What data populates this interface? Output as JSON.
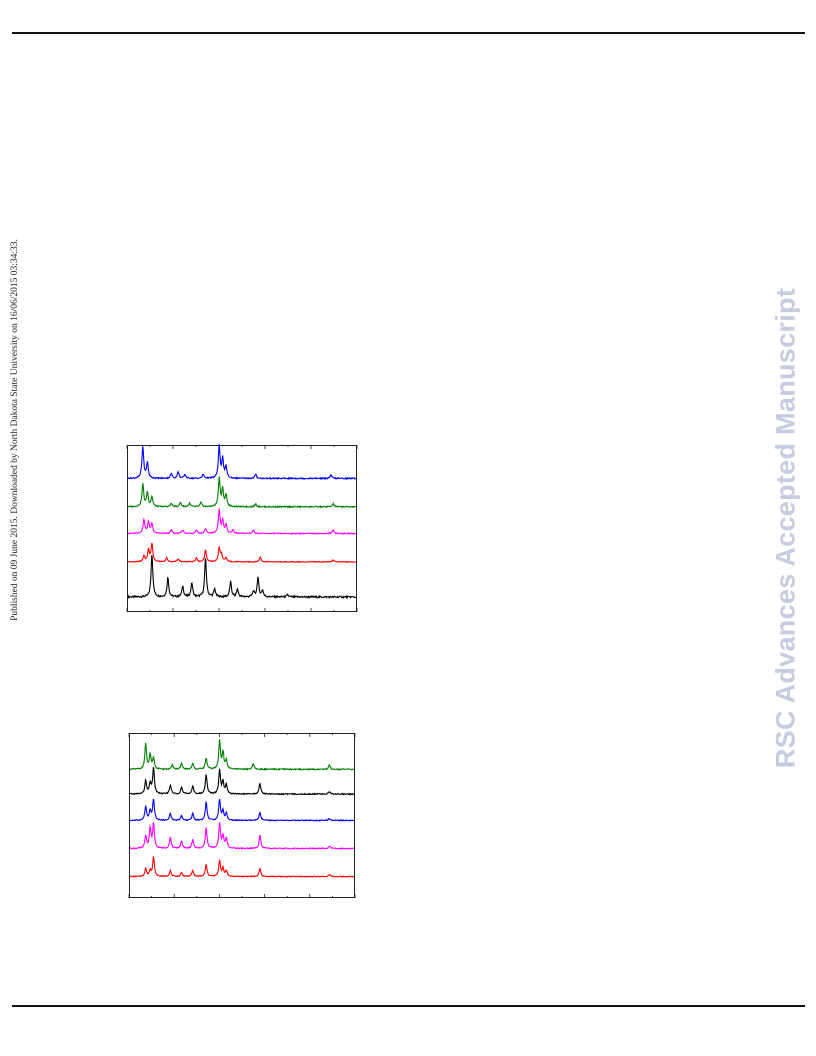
{
  "page": {
    "side_note": "Published on 09 June 2015. Downloaded by North Dakota State University on 16/06/2015 03:34:33.",
    "watermark": "RSC Advances Accepted Manuscript"
  },
  "colors": {
    "black": "#000000",
    "red": "#ff0000",
    "magenta": "#ff00ff",
    "green": "#008000",
    "blue": "#0000ff"
  },
  "chart_data": [
    {
      "type": "line",
      "title": "",
      "xlabel": "",
      "ylabel": "",
      "xlim": [
        0,
        100
      ],
      "grid": false,
      "series": [
        {
          "color": "#000000",
          "baseline": 0.91,
          "scale": 0.26,
          "peaks": [
            [
              10.5,
              1.0
            ],
            [
              17.5,
              0.45
            ],
            [
              24,
              0.25
            ],
            [
              28,
              0.32
            ],
            [
              34,
              0.9
            ],
            [
              38,
              0.18
            ],
            [
              45,
              0.35
            ],
            [
              48,
              0.18
            ],
            [
              55,
              0.12
            ],
            [
              57,
              0.45
            ],
            [
              59,
              0.15
            ],
            [
              70,
              0.05
            ]
          ]
        },
        {
          "color": "#ff0000",
          "baseline": 0.7,
          "scale": 0.12,
          "peaks": [
            [
              7,
              0.3
            ],
            [
              9,
              0.6
            ],
            [
              10.5,
              0.9
            ],
            [
              17,
              0.2
            ],
            [
              22,
              0.15
            ],
            [
              30,
              0.2
            ],
            [
              34,
              0.6
            ],
            [
              40,
              0.7
            ],
            [
              41,
              0.35
            ],
            [
              43,
              0.2
            ],
            [
              58,
              0.25
            ],
            [
              90,
              0.1
            ]
          ]
        },
        {
          "color": "#ff00ff",
          "baseline": 0.53,
          "scale": 0.14,
          "peaks": [
            [
              7,
              0.6
            ],
            [
              9,
              0.5
            ],
            [
              10.5,
              0.4
            ],
            [
              19,
              0.15
            ],
            [
              24,
              0.15
            ],
            [
              30,
              0.15
            ],
            [
              34,
              0.2
            ],
            [
              40,
              1.0
            ],
            [
              41.5,
              0.55
            ],
            [
              43,
              0.35
            ],
            [
              46,
              0.15
            ],
            [
              55,
              0.15
            ],
            [
              90,
              0.15
            ]
          ]
        },
        {
          "color": "#008000",
          "baseline": 0.37,
          "scale": 0.17,
          "peaks": [
            [
              6.5,
              0.8
            ],
            [
              8.5,
              0.5
            ],
            [
              10.5,
              0.35
            ],
            [
              19,
              0.12
            ],
            [
              23,
              0.15
            ],
            [
              27,
              0.12
            ],
            [
              32,
              0.15
            ],
            [
              40,
              1.0
            ],
            [
              41.5,
              0.6
            ],
            [
              43,
              0.4
            ],
            [
              56,
              0.1
            ],
            [
              90,
              0.1
            ]
          ]
        },
        {
          "color": "#0000ff",
          "baseline": 0.2,
          "scale": 0.19,
          "peaks": [
            [
              6.5,
              1.0
            ],
            [
              8.5,
              0.5
            ],
            [
              19,
              0.15
            ],
            [
              22,
              0.2
            ],
            [
              25,
              0.12
            ],
            [
              33,
              0.12
            ],
            [
              40,
              1.0
            ],
            [
              41.5,
              0.6
            ],
            [
              43,
              0.35
            ],
            [
              56,
              0.12
            ],
            [
              89,
              0.1
            ]
          ]
        }
      ]
    },
    {
      "type": "line",
      "title": "",
      "xlabel": "",
      "ylabel": "",
      "xlim": [
        0,
        100
      ],
      "grid": false,
      "series": [
        {
          "color": "#ff0000",
          "baseline": 0.87,
          "scale": 0.12,
          "peaks": [
            [
              7,
              0.4
            ],
            [
              9,
              0.3
            ],
            [
              10.5,
              1.0
            ],
            [
              18,
              0.3
            ],
            [
              23,
              0.2
            ],
            [
              28,
              0.3
            ],
            [
              34,
              0.6
            ],
            [
              40,
              0.8
            ],
            [
              41.5,
              0.4
            ],
            [
              43,
              0.3
            ],
            [
              58,
              0.4
            ],
            [
              89,
              0.1
            ]
          ]
        },
        {
          "color": "#ff00ff",
          "baseline": 0.7,
          "scale": 0.15,
          "peaks": [
            [
              7,
              0.5
            ],
            [
              9,
              0.8
            ],
            [
              10.5,
              1.0
            ],
            [
              18,
              0.45
            ],
            [
              23,
              0.3
            ],
            [
              28,
              0.35
            ],
            [
              34,
              0.85
            ],
            [
              40,
              1.0
            ],
            [
              41.5,
              0.5
            ],
            [
              43,
              0.4
            ],
            [
              58,
              0.55
            ],
            [
              89,
              0.1
            ]
          ]
        },
        {
          "color": "#0000ff",
          "baseline": 0.53,
          "scale": 0.14,
          "peaks": [
            [
              7,
              0.6
            ],
            [
              9,
              0.4
            ],
            [
              10.5,
              0.9
            ],
            [
              18,
              0.3
            ],
            [
              23,
              0.2
            ],
            [
              28,
              0.3
            ],
            [
              34,
              0.8
            ],
            [
              40,
              0.9
            ],
            [
              41.5,
              0.4
            ],
            [
              43,
              0.3
            ],
            [
              58,
              0.35
            ],
            [
              89,
              0.1
            ]
          ]
        },
        {
          "color": "#000000",
          "baseline": 0.37,
          "scale": 0.16,
          "peaks": [
            [
              7,
              0.5
            ],
            [
              9,
              0.4
            ],
            [
              10.5,
              1.0
            ],
            [
              18,
              0.35
            ],
            [
              23,
              0.25
            ],
            [
              28,
              0.3
            ],
            [
              34,
              0.75
            ],
            [
              40,
              0.9
            ],
            [
              41.5,
              0.45
            ],
            [
              43,
              0.35
            ],
            [
              58,
              0.4
            ],
            [
              89,
              0.1
            ]
          ]
        },
        {
          "color": "#008000",
          "baseline": 0.22,
          "scale": 0.17,
          "peaks": [
            [
              7,
              0.9
            ],
            [
              9,
              0.5
            ],
            [
              10.5,
              0.4
            ],
            [
              19,
              0.15
            ],
            [
              23,
              0.2
            ],
            [
              28,
              0.2
            ],
            [
              34,
              0.4
            ],
            [
              40,
              1.0
            ],
            [
              41.5,
              0.6
            ],
            [
              43,
              0.3
            ],
            [
              55,
              0.2
            ],
            [
              89,
              0.15
            ]
          ]
        }
      ]
    }
  ]
}
